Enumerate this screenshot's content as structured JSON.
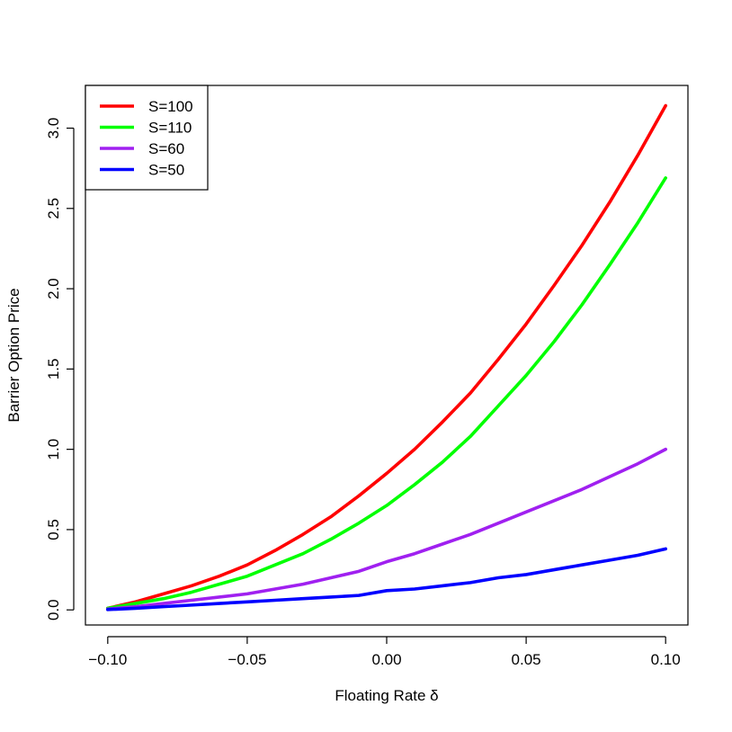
{
  "chart_data": {
    "type": "line",
    "title": "",
    "xlabel": "Floating Rate  δ",
    "ylabel": "Barrier Option Price",
    "xlim": [
      -0.108,
      0.108
    ],
    "ylim": [
      -0.094,
      3.266
    ],
    "xticks": [
      -0.1,
      -0.05,
      0.0,
      0.05,
      0.1
    ],
    "xtick_labels": [
      "−0.10",
      "−0.05",
      "0.00",
      "0.05",
      "0.10"
    ],
    "yticks": [
      0.0,
      0.5,
      1.0,
      1.5,
      2.0,
      2.5,
      3.0
    ],
    "ytick_labels": [
      "0.0",
      "0.5",
      "1.0",
      "1.5",
      "2.0",
      "2.5",
      "3.0"
    ],
    "grid": false,
    "legend_position": "top-left",
    "x": [
      -0.1,
      -0.09,
      -0.08,
      -0.07,
      -0.06,
      -0.05,
      -0.04,
      -0.03,
      -0.02,
      -0.01,
      0.0,
      0.01,
      0.02,
      0.03,
      0.04,
      0.05,
      0.06,
      0.07,
      0.08,
      0.09,
      0.1
    ],
    "series": [
      {
        "name": "S=100",
        "color": "#ff0000",
        "values": [
          0.01,
          0.05,
          0.1,
          0.15,
          0.21,
          0.28,
          0.37,
          0.47,
          0.58,
          0.71,
          0.85,
          1.0,
          1.17,
          1.35,
          1.56,
          1.78,
          2.02,
          2.27,
          2.54,
          2.83,
          3.14
        ]
      },
      {
        "name": "S=110",
        "color": "#00ff00",
        "values": [
          0.01,
          0.04,
          0.07,
          0.11,
          0.16,
          0.21,
          0.28,
          0.35,
          0.44,
          0.54,
          0.65,
          0.78,
          0.92,
          1.08,
          1.27,
          1.46,
          1.67,
          1.9,
          2.15,
          2.41,
          2.69
        ]
      },
      {
        "name": "S=60",
        "color": "#a020f0",
        "values": [
          0.005,
          0.02,
          0.04,
          0.06,
          0.08,
          0.1,
          0.13,
          0.16,
          0.2,
          0.24,
          0.3,
          0.35,
          0.41,
          0.47,
          0.54,
          0.61,
          0.68,
          0.75,
          0.83,
          0.91,
          1.0
        ]
      },
      {
        "name": "S=50",
        "color": "#0000ff",
        "values": [
          0.002,
          0.01,
          0.02,
          0.03,
          0.04,
          0.05,
          0.06,
          0.07,
          0.08,
          0.09,
          0.12,
          0.13,
          0.15,
          0.17,
          0.2,
          0.22,
          0.25,
          0.28,
          0.31,
          0.34,
          0.38
        ]
      }
    ]
  }
}
